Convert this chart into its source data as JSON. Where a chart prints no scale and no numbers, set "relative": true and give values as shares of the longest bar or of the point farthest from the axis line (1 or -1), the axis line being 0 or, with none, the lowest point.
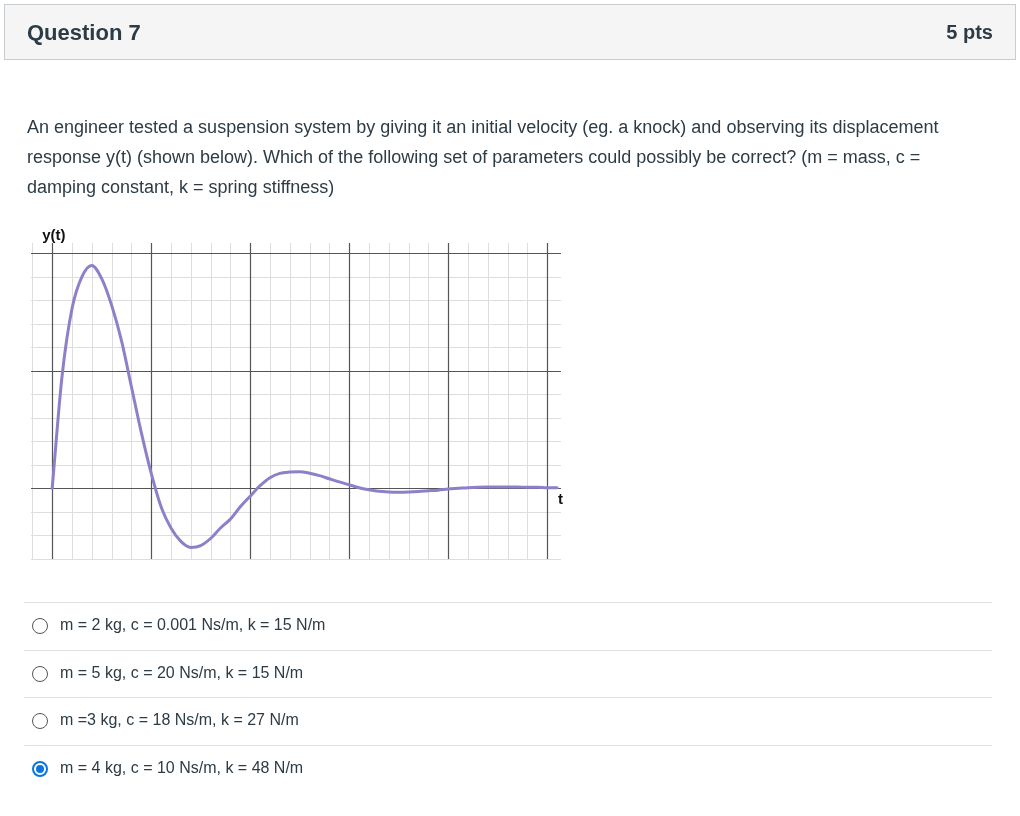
{
  "chart_data": {
    "type": "line",
    "relative": true,
    "title": "Question 7",
    "xlabel": "t",
    "ylabel": "y(t)",
    "grid": true,
    "categories": [
      null,
      null,
      null,
      null,
      null,
      null,
      null,
      null,
      null,
      null,
      null,
      null,
      null,
      null,
      null,
      null,
      null,
      null,
      null,
      null,
      null,
      null,
      null,
      null,
      null,
      null,
      null,
      null,
      null,
      null,
      null,
      null,
      null,
      null,
      null,
      null,
      null,
      null,
      null,
      null,
      null,
      null,
      null,
      null,
      null,
      null,
      null,
      null,
      null,
      null,
      null,
      null
    ],
    "series": [
      {
        "color": "#8f7fc9",
        "values": [
          0,
          0.505,
          0.806,
          0.949,
          1,
          0.941,
          0.822,
          0.663,
          0.457,
          0.251,
          0.068,
          -0.083,
          -0.178,
          -0.238,
          -0.265,
          -0.257,
          -0.225,
          -0.178,
          -0.138,
          -0.083,
          -0.035,
          0.012,
          0.048,
          0.067,
          0.073,
          0.075,
          0.068,
          0.057,
          0.043,
          0.029,
          0.016,
          0.003,
          -0.006,
          -0.013,
          -0.016,
          -0.017,
          -0.016,
          -0.014,
          -0.011,
          -0.008,
          -0.003,
          0,
          0.003,
          0.005,
          0.006,
          0.006,
          0.006,
          0.006,
          0.005,
          0.005,
          0.003,
          0.003
        ]
      }
    ],
    "annotations": [
      "5 pts",
      "An engineer tested a suspension system by giving it an initial velocity (eg. a knock) and observing its displacement response y(t) (shown below). Which of the following set of parameters could possibly be correct? (m = mass, c = damping constant, k = spring stiffness)",
      "m = 2 kg, c = 0.001 Ns/m, k = 15 N/m",
      "m = 5 kg, c = 20 Ns/m, k = 15 N/m",
      "m =3 kg, c = 18 Ns/m, k = 27 N/m",
      "m = 4 kg, c = 10 Ns/m, k = 48 N/m"
    ]
  }
}
